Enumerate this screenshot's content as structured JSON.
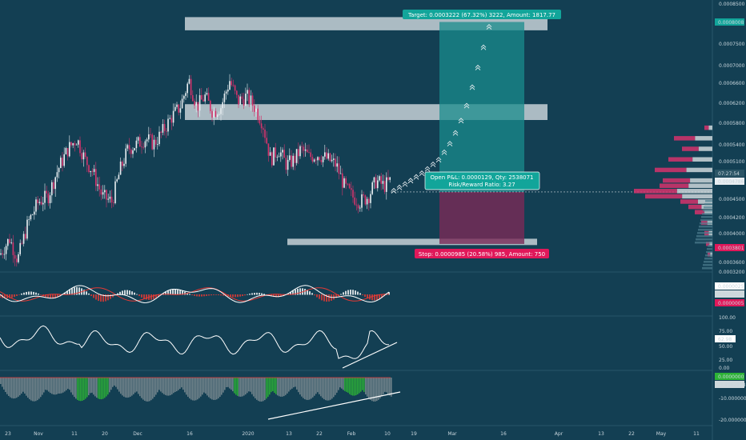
{
  "chart_data": {
    "type": "candlestick",
    "colors": {
      "background": "#133f53",
      "up_candle": "#e8eef2",
      "down_candle": "#d6336c",
      "target_zone": "#1a8c8c",
      "stop_zone": "#7a2a57",
      "target_label": "#12a59a",
      "stop_label": "#e0185a",
      "macd_line": "#ffffff",
      "signal_line": "#e53935",
      "rsi_line": "#ffffff",
      "momentum_up": "#2db336",
      "momentum_hist": "#7a8a90"
    },
    "x_axis_labels": [
      "23",
      "Nov",
      "11",
      "20",
      "Dec",
      "16",
      "2020",
      "13",
      "22",
      "Feb",
      "10",
      "19",
      "Mar",
      "16",
      "Apr",
      "13",
      "22",
      "May",
      "11"
    ],
    "price_axis": {
      "ticks": [
        "0.0008500",
        "0.0008000",
        "0.0007500",
        "0.0007000",
        "0.0006600",
        "0.0006200",
        "0.0005800",
        "0.0005400",
        "0.0005100",
        "0.0004786",
        "0.0004500",
        "0.0004200",
        "0.0004000",
        "0.0003800",
        "0.0003600",
        "0.0003200"
      ],
      "highlight_target": "0.0008008",
      "highlight_countdown": "07:27:54",
      "highlight_current": "0.0004786",
      "highlight_stop": "0.0003801"
    },
    "macd_axis": {
      "ticks": [
        "0.0000025",
        "0.0000020",
        "0.0000005"
      ]
    },
    "rsi_axis": {
      "ticks": [
        "100.00",
        "75.00",
        "62.98",
        "50.00",
        "25.00",
        "0.00"
      ],
      "current": "62.98"
    },
    "momentum_axis": {
      "ticks": [
        "0.0000000",
        "-3.4962918",
        "-10.0000000",
        "-20.0000000"
      ],
      "current": "-3.4962918"
    },
    "position": {
      "target_label": "Target: 0.0003222 (67.32%) 3222, Amount: 1817.77",
      "stop_label": "Stop: 0.0000985 (20.58%) 985, Amount: 750",
      "pnl_line1": "Open P&L: 0.0000129, Qty: 2538071",
      "pnl_line2": "Risk/Reward Ratio: 3.27",
      "entry": 0.0004786,
      "target": 0.0008008,
      "stop": 0.0003801
    },
    "zones": [
      {
        "top": 0.00081,
        "bottom": 0.000785
      },
      {
        "top": 0.000645,
        "bottom": 0.000615
      },
      {
        "top": 0.00039,
        "bottom": 0.000378
      }
    ],
    "price_path": [
      [
        0,
        0.00036
      ],
      [
        12,
        0.00039
      ],
      [
        22,
        0.00035
      ],
      [
        35,
        0.00042
      ],
      [
        48,
        0.00046
      ],
      [
        60,
        0.00047
      ],
      [
        72,
        0.00052
      ],
      [
        85,
        0.00056
      ],
      [
        96,
        0.00058
      ],
      [
        106,
        0.00054
      ],
      [
        115,
        0.00052
      ],
      [
        128,
        0.00047
      ],
      [
        140,
        0.00046
      ],
      [
        150,
        0.00052
      ],
      [
        160,
        0.00056
      ],
      [
        172,
        0.00057
      ],
      [
        182,
        0.00058
      ],
      [
        192,
        0.00057
      ],
      [
        202,
        0.00059
      ],
      [
        214,
        0.00062
      ],
      [
        225,
        0.00064
      ],
      [
        236,
        0.00069
      ],
      [
        246,
        0.00064
      ],
      [
        256,
        0.00066
      ],
      [
        266,
        0.00063
      ],
      [
        276,
        0.00064
      ],
      [
        287,
        0.00069
      ],
      [
        297,
        0.00065
      ],
      [
        308,
        0.00066
      ],
      [
        318,
        0.00064
      ],
      [
        328,
        0.00061
      ],
      [
        338,
        0.00054
      ],
      [
        348,
        0.00056
      ],
      [
        358,
        0.00053
      ],
      [
        368,
        0.00054
      ],
      [
        376,
        0.00056
      ],
      [
        386,
        0.000545
      ],
      [
        398,
        0.00055
      ],
      [
        410,
        0.00054
      ],
      [
        420,
        0.00053
      ],
      [
        430,
        0.00049
      ],
      [
        440,
        0.00047
      ],
      [
        450,
        0.00046
      ],
      [
        460,
        0.00047
      ],
      [
        470,
        0.0005
      ],
      [
        480,
        0.00049
      ],
      [
        488,
        0.0005
      ]
    ],
    "projection_path": [
      [
        490,
        0.000482
      ],
      [
        510,
        0.0005
      ],
      [
        530,
        0.00052
      ],
      [
        550,
        0.000545
      ],
      [
        565,
        0.00058
      ],
      [
        580,
        0.00063
      ],
      [
        592,
        0.00069
      ],
      [
        603,
        0.00075
      ],
      [
        612,
        0.0008
      ]
    ],
    "volume_profile": [
      [
        0.0006,
        10
      ],
      [
        0.00058,
        48
      ],
      [
        0.00056,
        38
      ],
      [
        0.00054,
        55
      ],
      [
        0.00052,
        72
      ],
      [
        0.0005,
        62
      ],
      [
        0.00049,
        66
      ],
      [
        0.00048,
        98
      ],
      [
        0.00047,
        84
      ],
      [
        0.00046,
        40
      ],
      [
        0.00045,
        30
      ],
      [
        0.00044,
        22
      ],
      [
        0.00042,
        14
      ],
      [
        0.0004,
        10
      ],
      [
        0.00038,
        8
      ],
      [
        0.00036,
        6
      ]
    ]
  }
}
